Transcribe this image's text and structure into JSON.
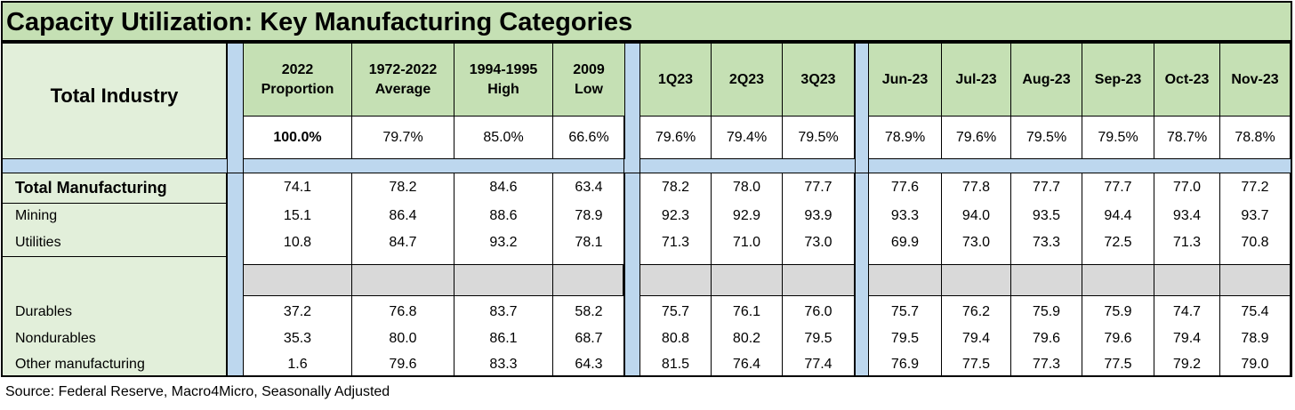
{
  "title": "Capacity Utilization: Key Manufacturing Categories",
  "source": "Source: Federal Reserve, Macro4Micro, Seasonally Adjusted",
  "colors": {
    "header_green": "#c5e0b4",
    "label_green": "#e2efda",
    "gap_blue": "#bdd7ee",
    "grey_band": "#d9d9d9"
  },
  "chart_data": {
    "type": "table",
    "columns": [
      [
        "2022",
        "Proportion"
      ],
      [
        "1972-2022",
        "Average"
      ],
      [
        "1994-1995",
        "High"
      ],
      [
        "2009",
        "Low"
      ],
      [
        "1Q23"
      ],
      [
        "2Q23"
      ],
      [
        "3Q23"
      ],
      [
        "Jun-23"
      ],
      [
        "Jul-23"
      ],
      [
        "Aug-23"
      ],
      [
        "Sep-23"
      ],
      [
        "Oct-23"
      ],
      [
        "Nov-23"
      ]
    ],
    "total_industry": {
      "label": "Total Industry",
      "values": [
        "100.0%",
        "79.7%",
        "85.0%",
        "66.6%",
        "79.6%",
        "79.4%",
        "79.5%",
        "78.9%",
        "79.6%",
        "79.5%",
        "79.5%",
        "78.7%",
        "78.8%"
      ]
    },
    "rows": [
      {
        "label": "Total Manufacturing",
        "values": [
          "74.1",
          "78.2",
          "84.6",
          "63.4",
          "78.2",
          "78.0",
          "77.7",
          "77.6",
          "77.8",
          "77.7",
          "77.7",
          "77.0",
          "77.2"
        ]
      },
      {
        "label": "Mining",
        "values": [
          "15.1",
          "86.4",
          "88.6",
          "78.9",
          "92.3",
          "92.9",
          "93.9",
          "93.3",
          "94.0",
          "93.5",
          "94.4",
          "93.4",
          "93.7"
        ]
      },
      {
        "label": "Utilities",
        "values": [
          "10.8",
          "84.7",
          "93.2",
          "78.1",
          "71.3",
          "71.0",
          "73.0",
          "69.9",
          "73.0",
          "73.3",
          "72.5",
          "71.3",
          "70.8"
        ]
      },
      {
        "label": "Durables",
        "values": [
          "37.2",
          "76.8",
          "83.7",
          "58.2",
          "75.7",
          "76.1",
          "76.0",
          "75.7",
          "76.2",
          "75.9",
          "75.9",
          "74.7",
          "75.4"
        ]
      },
      {
        "label": "Nondurables",
        "values": [
          "35.3",
          "80.0",
          "86.1",
          "68.7",
          "80.8",
          "80.2",
          "79.5",
          "79.5",
          "79.4",
          "79.6",
          "79.6",
          "79.4",
          "78.9"
        ]
      },
      {
        "label": "Other manufacturing",
        "values": [
          "1.6",
          "79.6",
          "83.3",
          "64.3",
          "81.5",
          "76.4",
          "77.4",
          "76.9",
          "77.5",
          "77.3",
          "77.5",
          "79.2",
          "79.0"
        ]
      }
    ]
  }
}
